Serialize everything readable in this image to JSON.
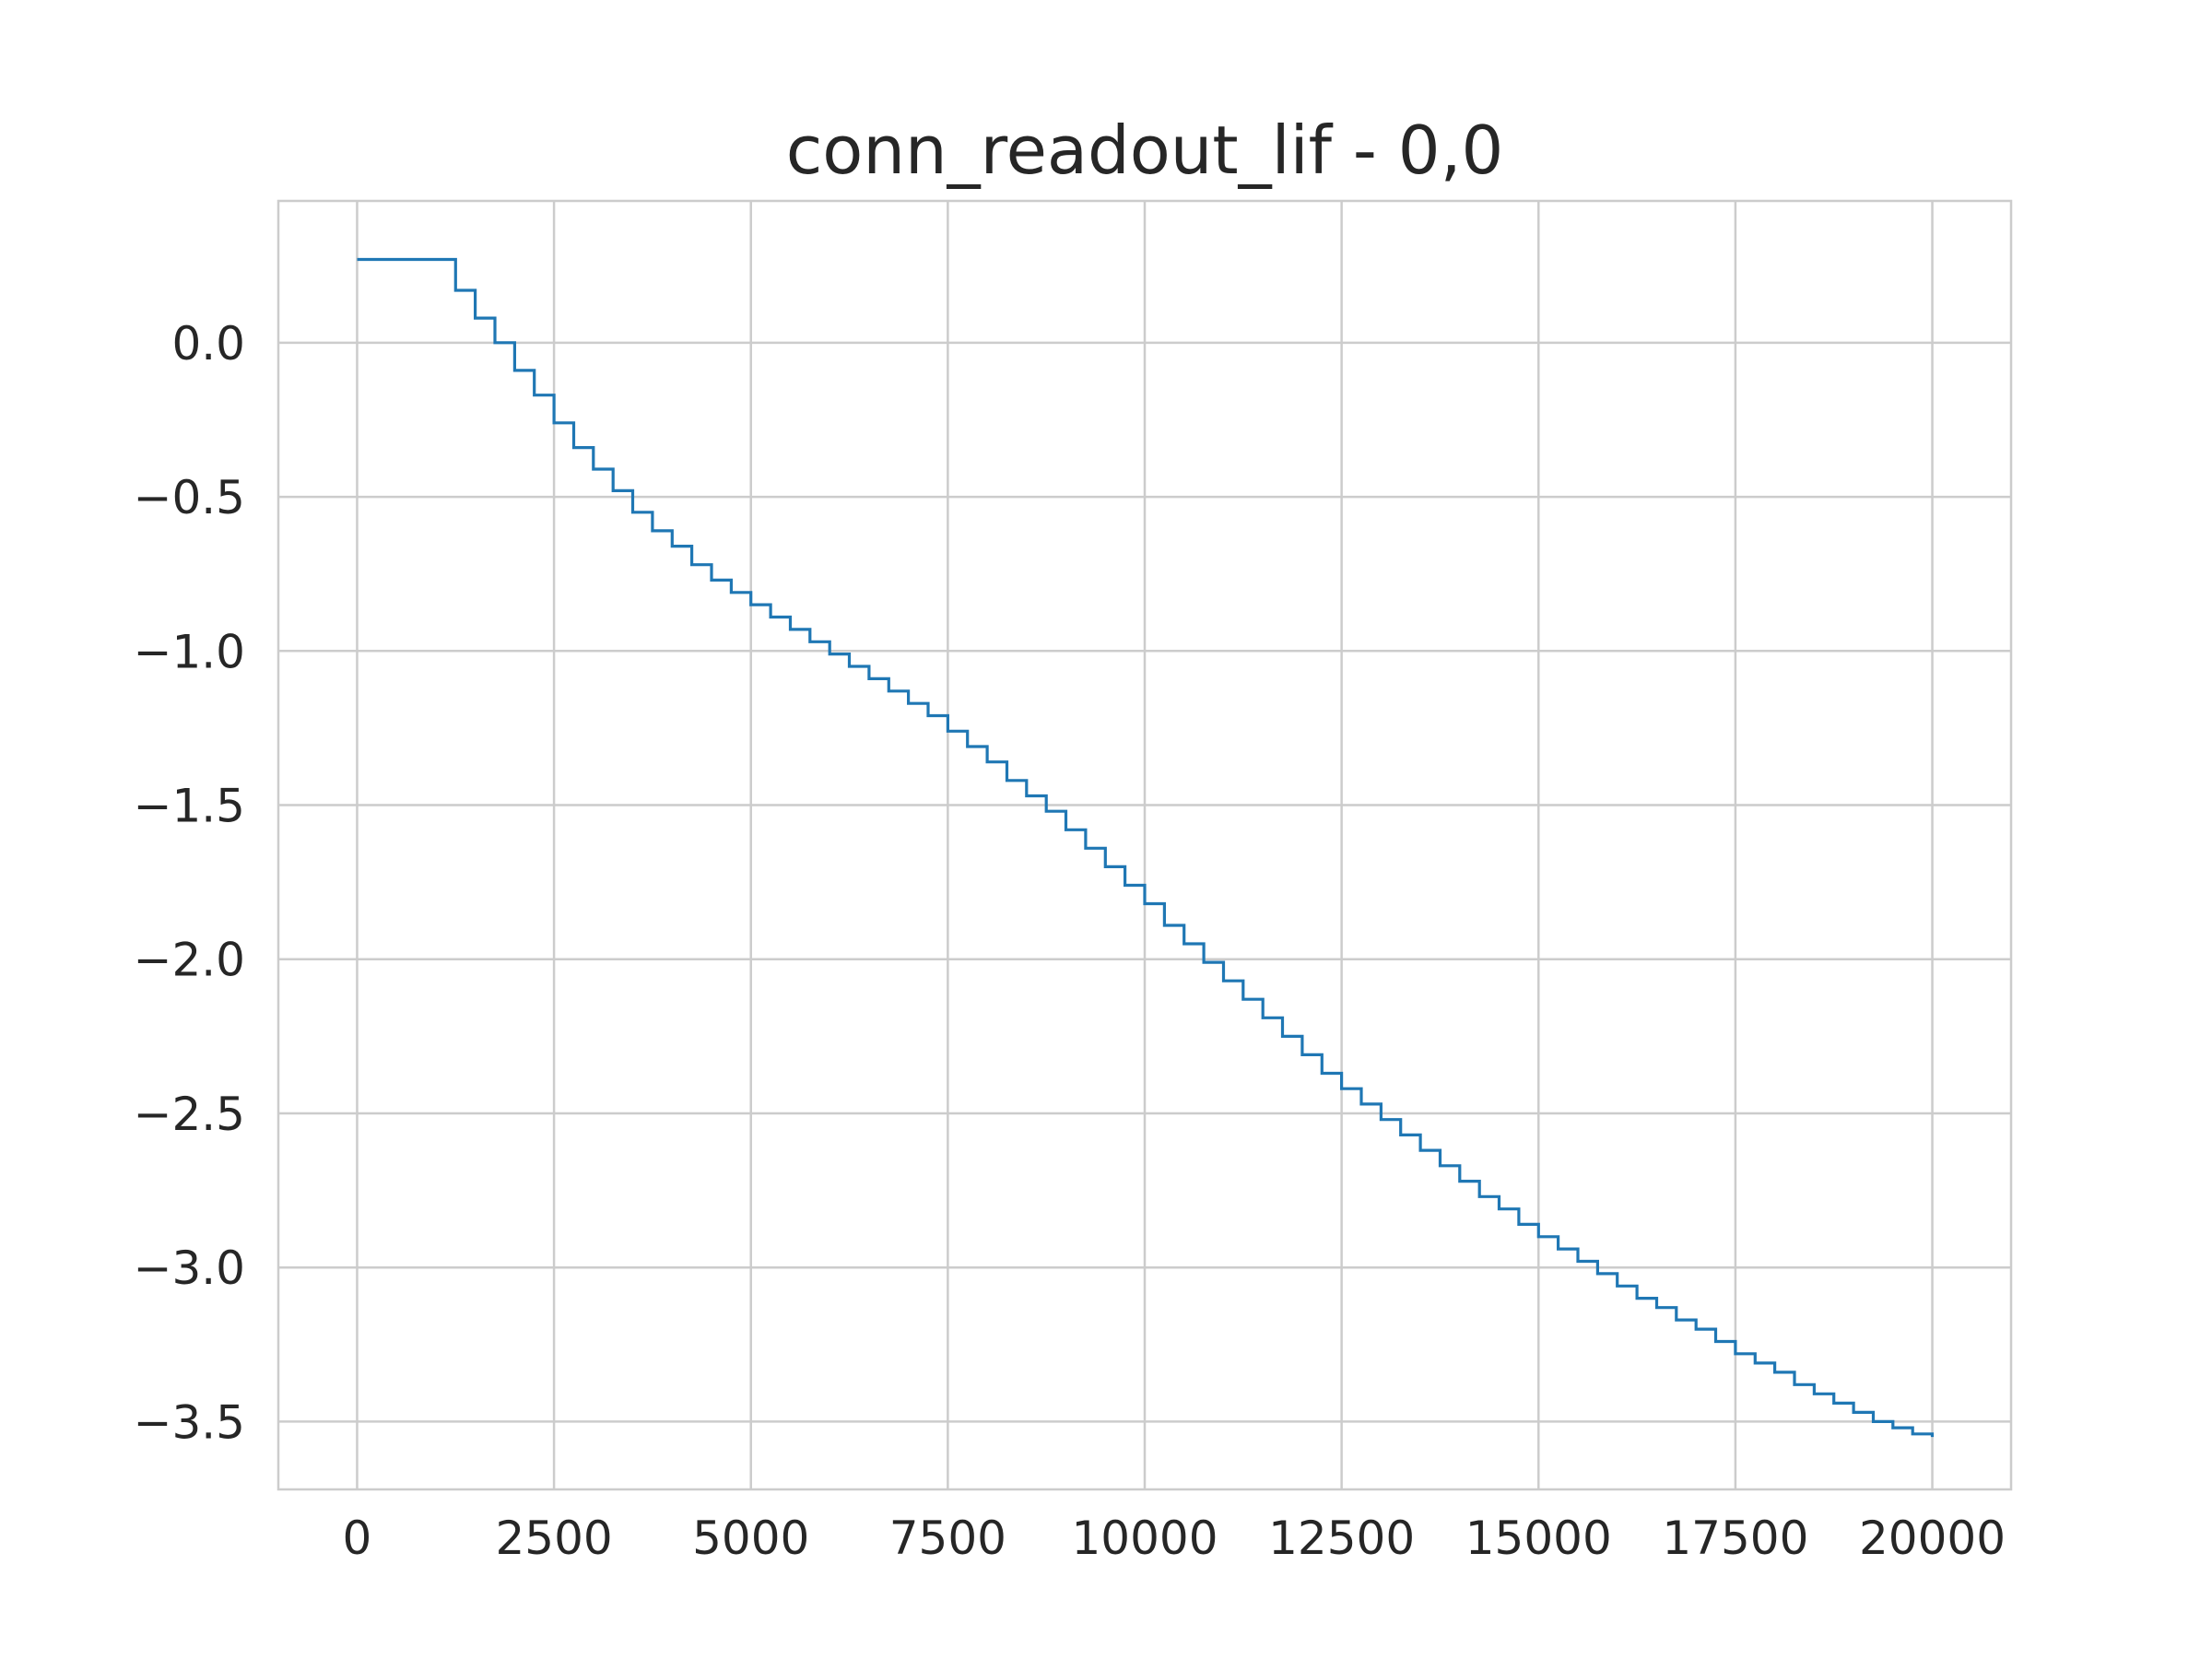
{
  "chart_data": {
    "type": "line",
    "step": true,
    "title": "conn_readout_lif - 0,0",
    "xlabel": "",
    "ylabel": "",
    "xlim": [
      -1000,
      21000
    ],
    "ylim": [
      -3.72,
      0.46
    ],
    "x_ticks": [
      0,
      2500,
      5000,
      7500,
      10000,
      12500,
      15000,
      17500,
      20000
    ],
    "x_tick_labels": [
      "0",
      "2500",
      "5000",
      "7500",
      "10000",
      "12500",
      "15000",
      "17500",
      "20000"
    ],
    "y_ticks": [
      0.0,
      -0.5,
      -1.0,
      -1.5,
      -2.0,
      -2.5,
      -3.0,
      -3.5
    ],
    "y_tick_labels": [
      "0.0",
      "−0.5",
      "−1.0",
      "−1.5",
      "−2.0",
      "−2.5",
      "−3.0",
      "−3.5"
    ],
    "grid": true,
    "color": "#1f77b4",
    "series": [
      {
        "x": [
          0,
          1250,
          1500,
          1750,
          2000,
          2250,
          2500,
          2750,
          3000,
          3250,
          3500,
          3750,
          4000,
          4250,
          4500,
          4750,
          5000,
          5250,
          5500,
          5750,
          6000,
          6250,
          6500,
          6750,
          7000,
          7250,
          7500,
          7750,
          8000,
          8250,
          8500,
          8750,
          9000,
          9250,
          9500,
          9750,
          10000,
          10250,
          10500,
          10750,
          11000,
          11250,
          11500,
          11750,
          12000,
          12250,
          12500,
          12750,
          13000,
          13250,
          13500,
          13750,
          14000,
          14250,
          14500,
          14750,
          15000,
          15250,
          15500,
          15750,
          16000,
          16250,
          16500,
          16750,
          17000,
          17250,
          17500,
          17750,
          18000,
          18250,
          18500,
          18750,
          19000,
          19250,
          19500,
          19750,
          20000
        ],
        "y": [
          0.27,
          0.17,
          0.08,
          0.0,
          -0.09,
          -0.17,
          -0.26,
          -0.34,
          -0.41,
          -0.48,
          -0.55,
          -0.61,
          -0.66,
          -0.72,
          -0.77,
          -0.81,
          -0.85,
          -0.89,
          -0.93,
          -0.97,
          -1.01,
          -1.05,
          -1.09,
          -1.13,
          -1.17,
          -1.21,
          -1.26,
          -1.31,
          -1.36,
          -1.42,
          -1.47,
          -1.52,
          -1.58,
          -1.64,
          -1.7,
          -1.76,
          -1.82,
          -1.89,
          -1.95,
          -2.01,
          -2.07,
          -2.13,
          -2.19,
          -2.25,
          -2.31,
          -2.37,
          -2.42,
          -2.47,
          -2.52,
          -2.57,
          -2.62,
          -2.67,
          -2.72,
          -2.77,
          -2.81,
          -2.86,
          -2.9,
          -2.94,
          -2.98,
          -3.02,
          -3.06,
          -3.1,
          -3.13,
          -3.17,
          -3.2,
          -3.24,
          -3.28,
          -3.31,
          -3.34,
          -3.38,
          -3.41,
          -3.44,
          -3.47,
          -3.5,
          -3.52,
          -3.54,
          -3.55
        ]
      }
    ]
  }
}
